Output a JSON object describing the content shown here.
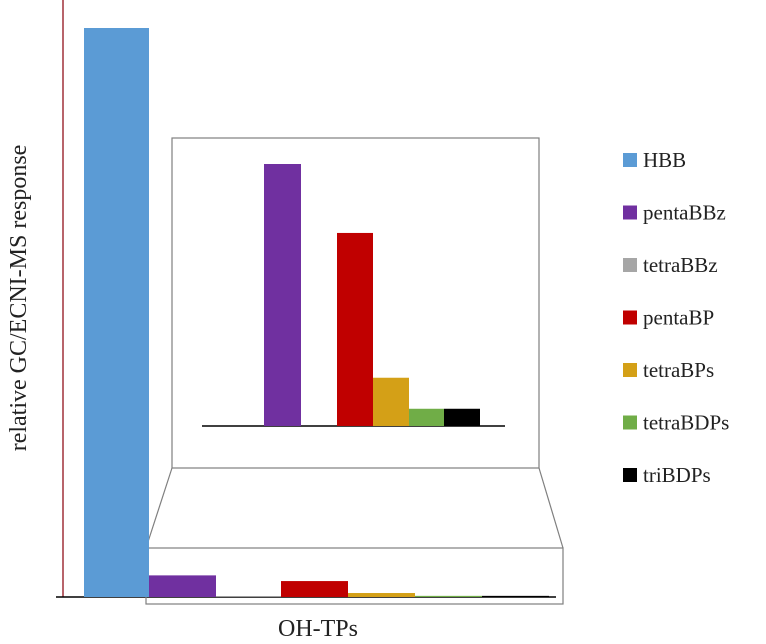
{
  "chart_data": [
    {
      "type": "bar",
      "xlabel": "OH-TPs",
      "ylabel": "relative GC/ECNI-MS   response",
      "categories": [
        "HBB",
        "pentaBBz",
        "tetraBBz",
        "pentaBP",
        "tetraBPs",
        "tetraBDPs",
        "triBDPs"
      ],
      "values": [
        100,
        3.8,
        0.1,
        2.8,
        0.7,
        0.2,
        0.2
      ],
      "ylim": [
        0,
        100
      ],
      "grid": false,
      "legend_position": "right",
      "colors": {
        "HBB": "#5b9bd5",
        "pentaBBz": "#7030a0",
        "tetraBBz": "#a6a6a6",
        "pentaBP": "#c00000",
        "tetraBPs": "#d4a017",
        "tetraBDPs": "#70ad47",
        "triBDPs": "#000000"
      }
    },
    {
      "type": "bar",
      "role": "inset",
      "categories": [
        "pentaBBz",
        "tetraBBz",
        "pentaBP",
        "tetraBPs",
        "tetraBDPs",
        "triBDPs"
      ],
      "values": [
        3.8,
        0.0,
        2.8,
        0.7,
        0.25,
        0.25
      ],
      "ylim": [
        0,
        4.2
      ]
    }
  ],
  "legend": [
    {
      "label": "HBB",
      "color": "#5b9bd5"
    },
    {
      "label": "pentaBBz",
      "color": "#7030a0"
    },
    {
      "label": "tetraBBz",
      "color": "#a6a6a6"
    },
    {
      "label": "pentaBP",
      "color": "#c00000"
    },
    {
      "label": "tetraBPs",
      "color": "#d4a017"
    },
    {
      "label": "tetraBDPs",
      "color": "#70ad47"
    },
    {
      "label": "triBDPs",
      "color": "#000000"
    }
  ]
}
